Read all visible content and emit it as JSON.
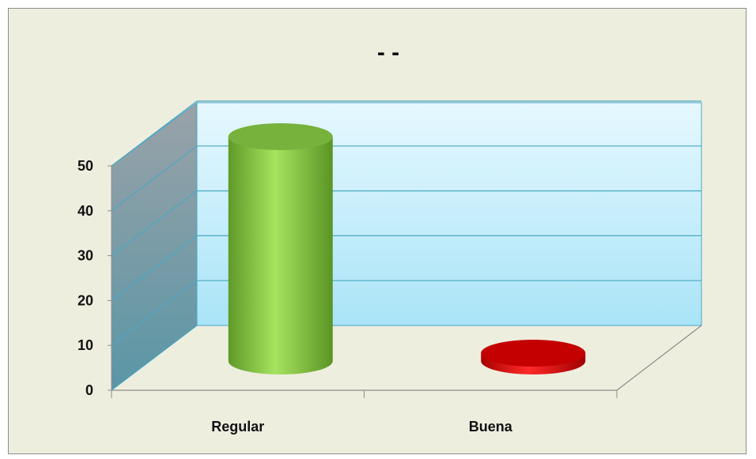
{
  "chart_data": {
    "type": "bar",
    "title": "- -",
    "categories": [
      "Regular",
      "Buena"
    ],
    "values": [
      50,
      1
    ],
    "ylim": [
      0,
      50
    ],
    "yticks": [
      "0",
      "10",
      "20",
      "30",
      "40",
      "50"
    ],
    "grid": true,
    "style": "3d-cylinder",
    "colors": [
      "#8fd14f",
      "#e00000"
    ],
    "legend": "none"
  }
}
